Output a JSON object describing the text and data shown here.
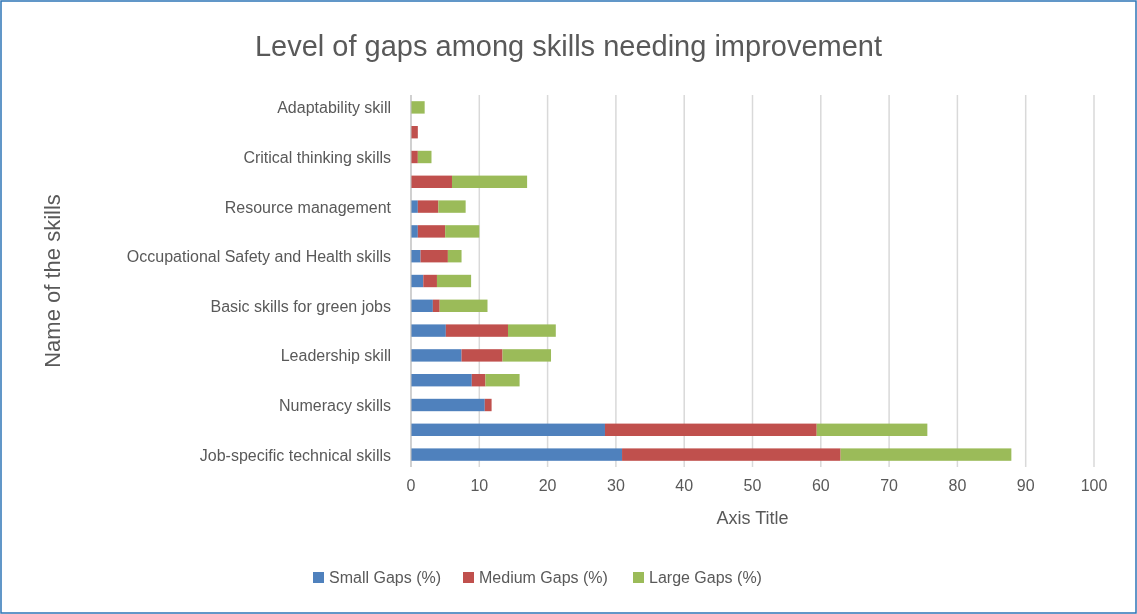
{
  "chart_data": {
    "type": "bar",
    "orientation": "horizontal",
    "stacked": true,
    "title": "Level of gaps among skills needing improvement",
    "xlabel": "Axis Title",
    "ylabel": "Name of the skills",
    "categories": [
      "Adaptability skill",
      null,
      "Critical thinking skills",
      null,
      "Resource management",
      null,
      "Occupational Safety and Health skills",
      null,
      "Basic skills for green jobs",
      null,
      "Leadership skill",
      null,
      "Numeracy skills",
      null,
      "Job-specific technical skills"
    ],
    "series": [
      {
        "name": "Small Gaps (%)",
        "color": "#4f81bd",
        "values": [
          0,
          0,
          0,
          0,
          1,
          1,
          1.4,
          1.8,
          3.2,
          5.1,
          7.4,
          8.9,
          10.8,
          28.4,
          30.9
        ]
      },
      {
        "name": "Medium Gaps (%)",
        "color": "#c0504d",
        "values": [
          0,
          1,
          1,
          6,
          3,
          4,
          4,
          2,
          1,
          9.1,
          6,
          2,
          1,
          31,
          32
        ]
      },
      {
        "name": "Large Gaps (%)",
        "color": "#9bbb59",
        "values": [
          2,
          0,
          2,
          11,
          4,
          5,
          2,
          5,
          7,
          7,
          7.1,
          5,
          0,
          16.2,
          25
        ]
      }
    ],
    "xlim": [
      0,
      100
    ],
    "xticks": [
      0,
      10,
      20,
      30,
      40,
      50,
      60,
      70,
      80,
      90,
      100
    ],
    "grid": "x",
    "legend": "bottom"
  }
}
